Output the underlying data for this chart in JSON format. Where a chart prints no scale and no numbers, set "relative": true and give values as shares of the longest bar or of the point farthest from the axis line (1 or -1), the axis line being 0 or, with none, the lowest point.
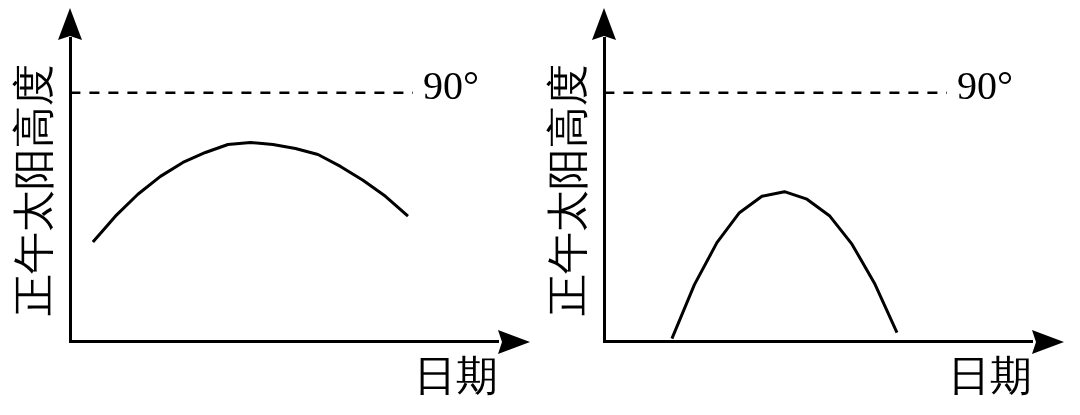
{
  "chart_data": [
    {
      "type": "line",
      "relative": true,
      "xlabel": "日期",
      "ylabel": "正午太阳高度",
      "tick_labels": false,
      "grid": false,
      "legend": false,
      "marker": "none",
      "line_style": "solid",
      "categories": [
        null,
        null,
        null,
        null,
        null,
        null,
        null,
        null,
        null,
        null,
        null,
        null,
        null,
        null,
        null,
        null,
        null,
        null,
        null,
        null
      ],
      "series": [
        {
          "color": "#000000",
          "values": [
            null,
            0.5,
            0.63,
            0.74,
            0.83,
            0.9,
            0.95,
            0.99,
            1.0,
            0.99,
            0.97,
            0.94,
            0.88,
            0.81,
            0.73,
            0.63,
            null,
            null,
            null,
            null
          ]
        }
      ],
      "ref_lines": [
        {
          "axis": "y",
          "value": 1.25,
          "color": "#000000",
          "line_style": "dashed"
        }
      ],
      "annotations": [
        "90°"
      ]
    },
    {
      "type": "line",
      "relative": true,
      "xlabel": "日期",
      "ylabel": "正午太阳高度",
      "tick_labels": false,
      "grid": false,
      "legend": false,
      "marker": "none",
      "line_style": "solid",
      "categories": [
        null,
        null,
        null,
        null,
        null,
        null,
        null,
        null,
        null,
        null,
        null,
        null,
        null,
        null,
        null,
        null,
        null,
        null,
        null,
        null
      ],
      "series": [
        {
          "color": "#000000",
          "values": [
            null,
            null,
            null,
            0.02,
            0.38,
            0.66,
            0.86,
            0.97,
            1.0,
            0.95,
            0.84,
            0.65,
            0.39,
            0.06,
            null,
            null,
            null,
            null,
            null,
            null
          ]
        }
      ],
      "ref_lines": [
        {
          "axis": "y",
          "value": 1.66,
          "color": "#000000",
          "line_style": "dashed"
        }
      ],
      "annotations": [
        "90°"
      ]
    }
  ]
}
